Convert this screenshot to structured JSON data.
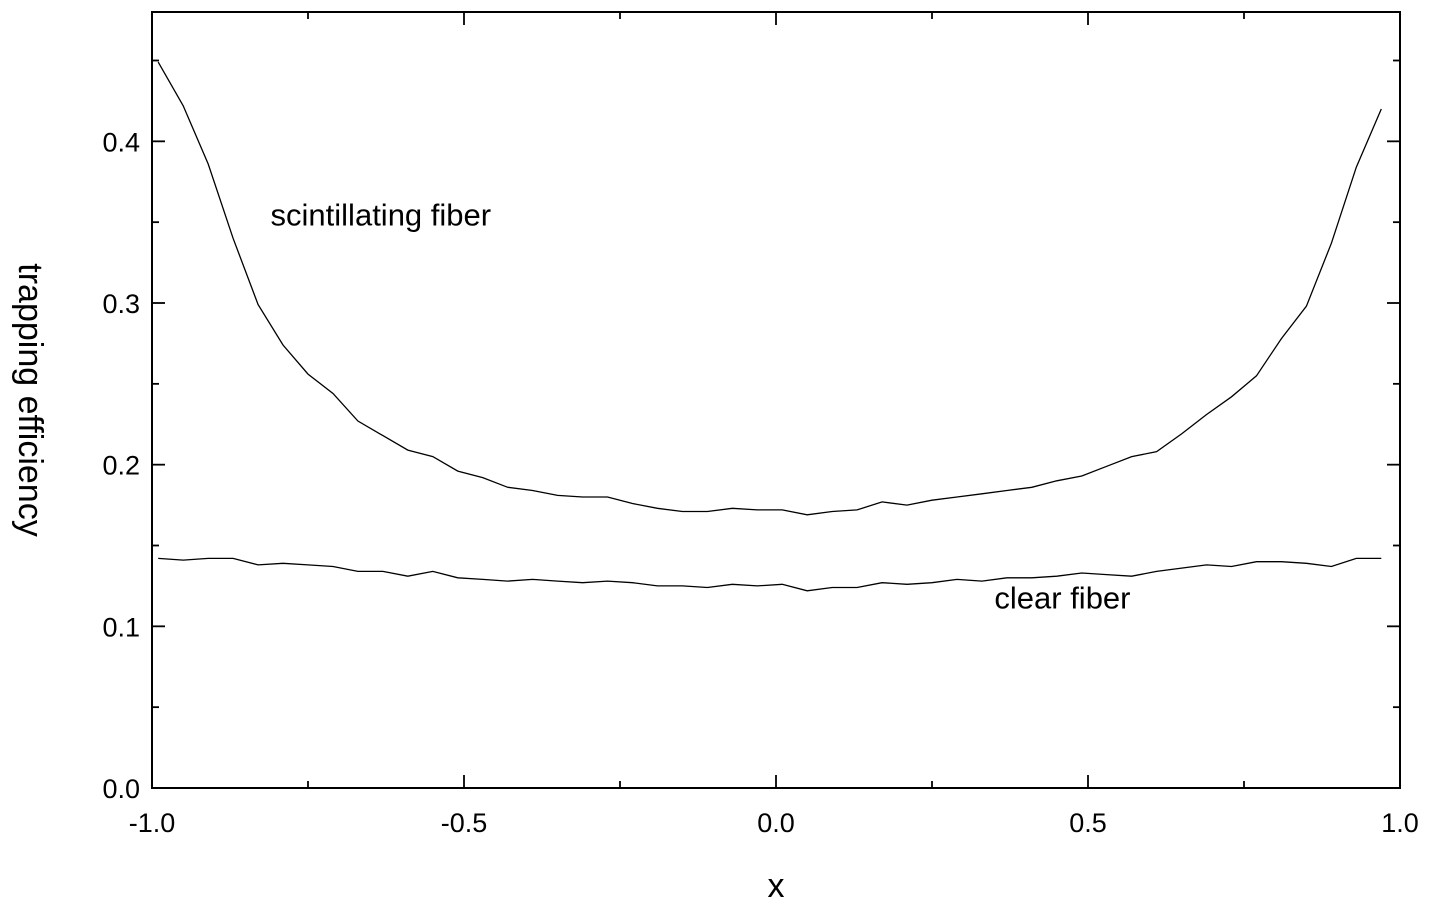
{
  "chart_data": {
    "type": "line",
    "xlabel": "x",
    "ylabel": "trapping efficiency",
    "xlim": [
      -1.0,
      1.0
    ],
    "ylim": [
      0.0,
      0.48
    ],
    "x_major_ticks": [
      -1.0,
      -0.5,
      0.0,
      0.5,
      1.0
    ],
    "x_tick_labels": [
      "-1.0",
      "-0.5",
      "0.0",
      "0.5",
      "1.0"
    ],
    "x_minor_ticks": [
      -0.75,
      -0.25,
      0.25,
      0.75
    ],
    "y_major_ticks": [
      0.0,
      0.1,
      0.2,
      0.3,
      0.4
    ],
    "y_tick_labels": [
      "0.0",
      "0.1",
      "0.2",
      "0.3",
      "0.4"
    ],
    "y_minor_ticks": [
      0.05,
      0.15,
      0.25,
      0.35,
      0.45
    ],
    "grid": false,
    "legend": "none",
    "series": [
      {
        "x": [
          -0.99,
          -0.95,
          -0.91,
          -0.87,
          -0.83,
          -0.79,
          -0.75,
          -0.71,
          -0.67,
          -0.63,
          -0.59,
          -0.55,
          -0.51,
          -0.47,
          -0.43,
          -0.39,
          -0.35,
          -0.31,
          -0.27,
          -0.23,
          -0.19,
          -0.15,
          -0.11,
          -0.07,
          -0.03,
          0.01,
          0.05,
          0.09,
          0.13,
          0.17,
          0.21,
          0.25,
          0.29,
          0.33,
          0.37,
          0.41,
          0.45,
          0.49,
          0.53,
          0.57,
          0.61,
          0.65,
          0.69,
          0.73,
          0.77,
          0.81,
          0.85,
          0.89,
          0.93,
          0.97
        ],
        "values": [
          0.449,
          0.422,
          0.386,
          0.34,
          0.299,
          0.274,
          0.256,
          0.244,
          0.227,
          0.218,
          0.209,
          0.205,
          0.196,
          0.192,
          0.186,
          0.184,
          0.181,
          0.18,
          0.18,
          0.176,
          0.173,
          0.171,
          0.171,
          0.173,
          0.172,
          0.172,
          0.169,
          0.171,
          0.172,
          0.177,
          0.175,
          0.178,
          0.18,
          0.182,
          0.184,
          0.186,
          0.19,
          0.193,
          0.199,
          0.205,
          0.208,
          0.219,
          0.231,
          0.242,
          0.255,
          0.278,
          0.298,
          0.337,
          0.384,
          0.42
        ]
      },
      {
        "x": [
          -0.99,
          -0.95,
          -0.91,
          -0.87,
          -0.83,
          -0.79,
          -0.75,
          -0.71,
          -0.67,
          -0.63,
          -0.59,
          -0.55,
          -0.51,
          -0.47,
          -0.43,
          -0.39,
          -0.35,
          -0.31,
          -0.27,
          -0.23,
          -0.19,
          -0.15,
          -0.11,
          -0.07,
          -0.03,
          0.01,
          0.05,
          0.09,
          0.13,
          0.17,
          0.21,
          0.25,
          0.29,
          0.33,
          0.37,
          0.41,
          0.45,
          0.49,
          0.53,
          0.57,
          0.61,
          0.65,
          0.69,
          0.73,
          0.77,
          0.81,
          0.85,
          0.89,
          0.93,
          0.97
        ],
        "values": [
          0.142,
          0.141,
          0.142,
          0.142,
          0.138,
          0.139,
          0.138,
          0.137,
          0.134,
          0.134,
          0.131,
          0.134,
          0.13,
          0.129,
          0.128,
          0.129,
          0.128,
          0.127,
          0.128,
          0.127,
          0.125,
          0.125,
          0.124,
          0.126,
          0.125,
          0.126,
          0.122,
          0.124,
          0.124,
          0.127,
          0.126,
          0.127,
          0.129,
          0.128,
          0.13,
          0.13,
          0.131,
          0.133,
          0.132,
          0.131,
          0.134,
          0.136,
          0.138,
          0.137,
          0.14,
          0.14,
          0.139,
          0.137,
          0.142,
          0.142
        ]
      }
    ],
    "annotations": [
      {
        "text": "scintillating fiber",
        "x": -0.81,
        "y": 0.348
      },
      {
        "text": "clear fiber",
        "x": 0.35,
        "y": 0.111
      }
    ]
  }
}
